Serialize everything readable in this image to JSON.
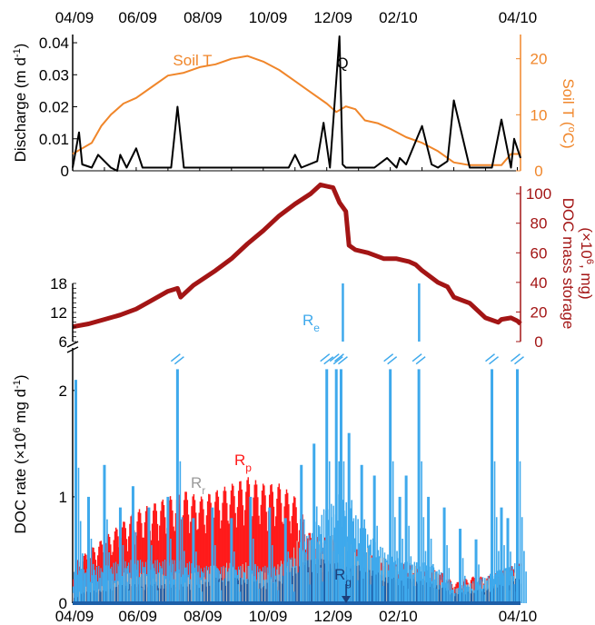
{
  "chart_data": [
    {
      "type": "line",
      "x_ticks_top": [
        "04/09",
        "06/09",
        "08/09",
        "10/09",
        "12/09",
        "02/10",
        "04/10"
      ],
      "ylabel_left": "Discharge (m d",
      "ylabel_left_sup": "-1",
      "ylabel_left_end": ")",
      "ylabel_right": "Soil T (",
      "ylabel_right_deg": "o",
      "ylabel_right_end": "C)",
      "y_left_ticks": [
        "0",
        "0.01",
        "0.02",
        "0.03",
        "0.04"
      ],
      "y_right_ticks": [
        "0",
        "10",
        "20"
      ],
      "ylim_left": [
        0,
        0.042
      ],
      "ylim_right": [
        0,
        24
      ],
      "colors": {
        "discharge": "#000000",
        "soil_t": "#f0862a"
      },
      "series": [
        {
          "name": "Q",
          "x_month": [
            0,
            0.2,
            0.3,
            0.6,
            0.8,
            1.2,
            1.4,
            1.5,
            1.7,
            2.0,
            2.2,
            2.4,
            2.6,
            3.1,
            3.3,
            3.5,
            3.9,
            4.2,
            5.0,
            6.0,
            6.8,
            7.0,
            7.2,
            7.7,
            7.9,
            8.1,
            8.4,
            8.5,
            8.6,
            8.7,
            8.9,
            9.5,
            9.9,
            10.2,
            10.3,
            10.5,
            11.0,
            11.3,
            11.5,
            11.8,
            12.0,
            12.5,
            13.2,
            13.5,
            13.8,
            13.9,
            14.1
          ],
          "values": [
            0.001,
            0.012,
            0.002,
            0.001,
            0.005,
            0.001,
            0.0,
            0.005,
            0.001,
            0.007,
            0.001,
            0.001,
            0.001,
            0.001,
            0.02,
            0.001,
            0.001,
            0.001,
            0.001,
            0.001,
            0.001,
            0.005,
            0.001,
            0.003,
            0.015,
            0.001,
            0.042,
            0.002,
            0.001,
            0.001,
            0.001,
            0.001,
            0.004,
            0.001,
            0.004,
            0.002,
            0.014,
            0.002,
            0.001,
            0.003,
            0.022,
            0.001,
            0.001,
            0.016,
            0.001,
            0.01,
            0.004
          ]
        },
        {
          "name": "Soil T",
          "x_month": [
            0,
            0.3,
            0.6,
            0.9,
            1.2,
            1.6,
            2.0,
            2.5,
            3.0,
            3.5,
            4.0,
            4.5,
            5.0,
            5.5,
            6.0,
            6.5,
            7.0,
            7.5,
            8.0,
            8.3,
            8.6,
            8.9,
            9.2,
            9.6,
            10.0,
            10.5,
            11.0,
            11.5,
            12.0,
            12.5,
            13.0,
            13.5,
            13.8,
            14.1
          ],
          "values": [
            3,
            4,
            5,
            8,
            10,
            12,
            13,
            15,
            17,
            17.5,
            18.5,
            19,
            20,
            20.5,
            19.5,
            18,
            16,
            14,
            12,
            10.5,
            11.5,
            11,
            9,
            8.5,
            7.5,
            6,
            5,
            3.5,
            1.5,
            1,
            1,
            1,
            3,
            3
          ]
        }
      ],
      "labels": {
        "q": "Q",
        "soil_t": "Soil T"
      }
    },
    {
      "type": "line",
      "ylabel_right_l1": "DOC mass storage",
      "ylabel_right_l2a": "(×10",
      "ylabel_right_l2sup": "6",
      "ylabel_right_l2b": ", mg)",
      "y_right_ticks": [
        "0",
        "20",
        "40",
        "60",
        "80",
        "100"
      ],
      "ylim_right": [
        0,
        105
      ],
      "color": "#a31515",
      "series": [
        {
          "name": "DOC mass storage",
          "x_month": [
            0,
            0.5,
            1.0,
            1.5,
            2.0,
            2.5,
            3.0,
            3.3,
            3.4,
            3.8,
            4.5,
            5.0,
            5.5,
            6.0,
            6.5,
            7.0,
            7.5,
            7.8,
            8.0,
            8.2,
            8.4,
            8.6,
            8.7,
            8.9,
            9.3,
            9.8,
            10.2,
            10.6,
            10.8,
            11.0,
            11.5,
            11.8,
            12.0,
            12.5,
            13.0,
            13.4,
            13.5,
            13.8,
            14.0,
            14.1
          ],
          "values": [
            10,
            12,
            15,
            18,
            22,
            28,
            34,
            36,
            30,
            38,
            48,
            56,
            66,
            75,
            85,
            93,
            100,
            106,
            105,
            104,
            94,
            88,
            65,
            62,
            60,
            56,
            56,
            54,
            52,
            48,
            40,
            37,
            30,
            26,
            16,
            13,
            15,
            16,
            14,
            12
          ]
        }
      ]
    },
    {
      "type": "bar",
      "ylabel": "DOC rate (×10",
      "ylabel_sup": "6",
      "ylabel_mid": " mg d",
      "ylabel_sup2": "-1",
      "ylabel_end": ")",
      "x_ticks_bottom": [
        "04/09",
        "06/09",
        "08/09",
        "10/09",
        "12/09",
        "02/10",
        "04/10"
      ],
      "y_ticks": [
        "0",
        "1",
        "2"
      ],
      "y_ticks_break": [
        "6",
        "12",
        "18"
      ],
      "ylim": [
        0,
        2.4
      ],
      "colors": {
        "Re": "#3ea9ec",
        "Rp": "#ff1a1a",
        "Rr": "#bdbdbd",
        "Rg": "#1d5fa8"
      },
      "series": [
        {
          "name": "Re",
          "label": "R",
          "label_sub": "e"
        },
        {
          "name": "Rp",
          "label": "R",
          "label_sub": "p"
        },
        {
          "name": "Rr",
          "label": "R",
          "label_sub": "r"
        },
        {
          "name": "Rg",
          "label": "R",
          "label_sub": "g"
        }
      ],
      "envelope_x_month": [
        0,
        0.5,
        1.0,
        1.5,
        2.0,
        2.5,
        3.0,
        3.5,
        4.0,
        4.5,
        5.0,
        5.5,
        6.0,
        6.5,
        7.0,
        7.5,
        8.0,
        8.5,
        9.0,
        9.5,
        10.0,
        10.5,
        11.0,
        11.5,
        12.0,
        12.5,
        13.0,
        13.5,
        14.0
      ],
      "Rp_top": [
        0.3,
        0.4,
        0.5,
        0.6,
        0.7,
        0.75,
        0.8,
        0.85,
        0.8,
        0.85,
        0.9,
        0.95,
        0.9,
        0.9,
        0.8,
        0.5,
        0.5,
        0.45,
        0.4,
        0.35,
        0.3,
        0.3,
        0.25,
        0.25,
        0.15,
        0.2,
        0.2,
        0.25,
        0.3
      ],
      "Re_base": [
        0.25,
        0.3,
        0.3,
        0.35,
        0.35,
        0.35,
        0.35,
        0.35,
        0.3,
        0.3,
        0.3,
        0.3,
        0.3,
        0.3,
        0.4,
        0.6,
        0.8,
        0.8,
        0.6,
        0.45,
        0.35,
        0.3,
        0.3,
        0.25,
        0.1,
        0.15,
        0.2,
        0.25,
        0.3
      ],
      "Rg_top": [
        0.05,
        0.1,
        0.1,
        0.15,
        0.15,
        0.15,
        0.15,
        0.15,
        0.15,
        0.2,
        0.2,
        0.2,
        0.15,
        0.2,
        0.3,
        0.35,
        0.35,
        0.3,
        0.3,
        0.25,
        0.2,
        0.2,
        0.18,
        0.15,
        0.08,
        0.1,
        0.12,
        0.15,
        0.2
      ],
      "Re_spikes_x": [
        0.1,
        0.5,
        1.0,
        1.5,
        1.9,
        2.4,
        3.0,
        3.3,
        3.8,
        4.4,
        5.0,
        5.6,
        6.2,
        6.7,
        7.2,
        7.6,
        8.0,
        8.3,
        8.45,
        8.7,
        9.1,
        9.5,
        10.0,
        10.3,
        10.5,
        10.9,
        11.2,
        11.7,
        12.2,
        12.7,
        13.2,
        13.5,
        13.7,
        14.0
      ],
      "Re_spikes_y": [
        2.1,
        1.0,
        1.3,
        0.9,
        1.1,
        0.9,
        1.0,
        2.2,
        0.8,
        0.9,
        0.8,
        1.0,
        0.9,
        0.8,
        1.3,
        1.5,
        2.2,
        2.2,
        2.2,
        1.6,
        1.3,
        1.2,
        2.2,
        1.0,
        1.2,
        2.2,
        1.0,
        0.9,
        0.7,
        0.6,
        2.2,
        0.9,
        0.8,
        2.2
      ]
    }
  ]
}
